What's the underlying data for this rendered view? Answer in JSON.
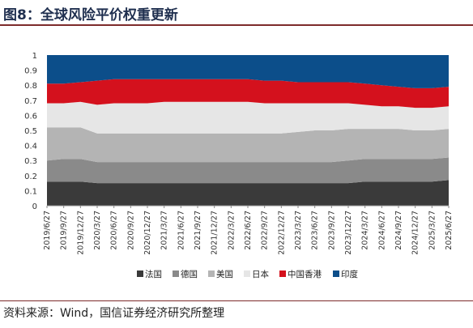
{
  "header": {
    "title": "图8：全球风险平价权重更新"
  },
  "footer": {
    "source": "资料来源：Wind，国信证券经济研究所整理"
  },
  "chart_data": {
    "type": "area",
    "stacked": true,
    "ylim": [
      0,
      1
    ],
    "yticks": [
      0,
      0.1,
      0.2,
      0.3,
      0.4,
      0.5,
      0.6,
      0.7,
      0.8,
      0.9,
      1
    ],
    "ytick_labels": [
      "0",
      "0.1",
      "0.2",
      "0.3",
      "0.4",
      "0.5",
      "0.6",
      "0.7",
      "0.8",
      "0.9",
      "1"
    ],
    "x": [
      "2019/6/27",
      "2019/9/27",
      "2019/12/27",
      "2020/3/27",
      "2020/6/27",
      "2020/9/27",
      "2020/12/27",
      "2021/3/27",
      "2021/6/27",
      "2021/9/27",
      "2021/12/27",
      "2022/3/27",
      "2022/6/27",
      "2022/9/27",
      "2022/12/27",
      "2023/3/27",
      "2023/6/27",
      "2023/9/27",
      "2023/12/27",
      "2024/3/27",
      "2024/6/27",
      "2024/9/27",
      "2024/12/27",
      "2025/3/27",
      "2025/6/27"
    ],
    "legend_position": "bottom",
    "series": [
      {
        "name": "法国",
        "color": "#3a3a3a",
        "values": [
          0.16,
          0.16,
          0.16,
          0.15,
          0.15,
          0.15,
          0.15,
          0.15,
          0.15,
          0.15,
          0.15,
          0.15,
          0.15,
          0.15,
          0.15,
          0.15,
          0.15,
          0.15,
          0.15,
          0.16,
          0.16,
          0.16,
          0.16,
          0.16,
          0.17
        ]
      },
      {
        "name": "德国",
        "color": "#8a8a8a",
        "values": [
          0.14,
          0.15,
          0.15,
          0.14,
          0.14,
          0.14,
          0.14,
          0.14,
          0.14,
          0.14,
          0.14,
          0.14,
          0.14,
          0.14,
          0.14,
          0.14,
          0.14,
          0.14,
          0.15,
          0.15,
          0.15,
          0.15,
          0.15,
          0.15,
          0.15
        ]
      },
      {
        "name": "美国",
        "color": "#b4b4b4",
        "values": [
          0.22,
          0.21,
          0.21,
          0.19,
          0.19,
          0.19,
          0.19,
          0.19,
          0.19,
          0.19,
          0.19,
          0.19,
          0.19,
          0.19,
          0.19,
          0.2,
          0.21,
          0.21,
          0.21,
          0.2,
          0.2,
          0.2,
          0.19,
          0.19,
          0.19
        ]
      },
      {
        "name": "日本",
        "color": "#e6e6e6",
        "values": [
          0.16,
          0.16,
          0.17,
          0.19,
          0.2,
          0.2,
          0.2,
          0.21,
          0.21,
          0.21,
          0.21,
          0.21,
          0.21,
          0.2,
          0.2,
          0.19,
          0.18,
          0.18,
          0.17,
          0.16,
          0.15,
          0.15,
          0.15,
          0.15,
          0.15
        ]
      },
      {
        "name": "中国香港",
        "color": "#d4111d",
        "values": [
          0.13,
          0.13,
          0.13,
          0.16,
          0.16,
          0.16,
          0.16,
          0.15,
          0.15,
          0.15,
          0.15,
          0.15,
          0.15,
          0.15,
          0.15,
          0.14,
          0.14,
          0.14,
          0.14,
          0.14,
          0.14,
          0.13,
          0.13,
          0.13,
          0.13
        ]
      },
      {
        "name": "印度",
        "color": "#0c4e8a",
        "values": [
          0.19,
          0.19,
          0.18,
          0.17,
          0.16,
          0.16,
          0.16,
          0.16,
          0.16,
          0.16,
          0.16,
          0.16,
          0.16,
          0.17,
          0.17,
          0.18,
          0.18,
          0.18,
          0.18,
          0.19,
          0.2,
          0.21,
          0.22,
          0.22,
          0.21
        ]
      }
    ]
  }
}
